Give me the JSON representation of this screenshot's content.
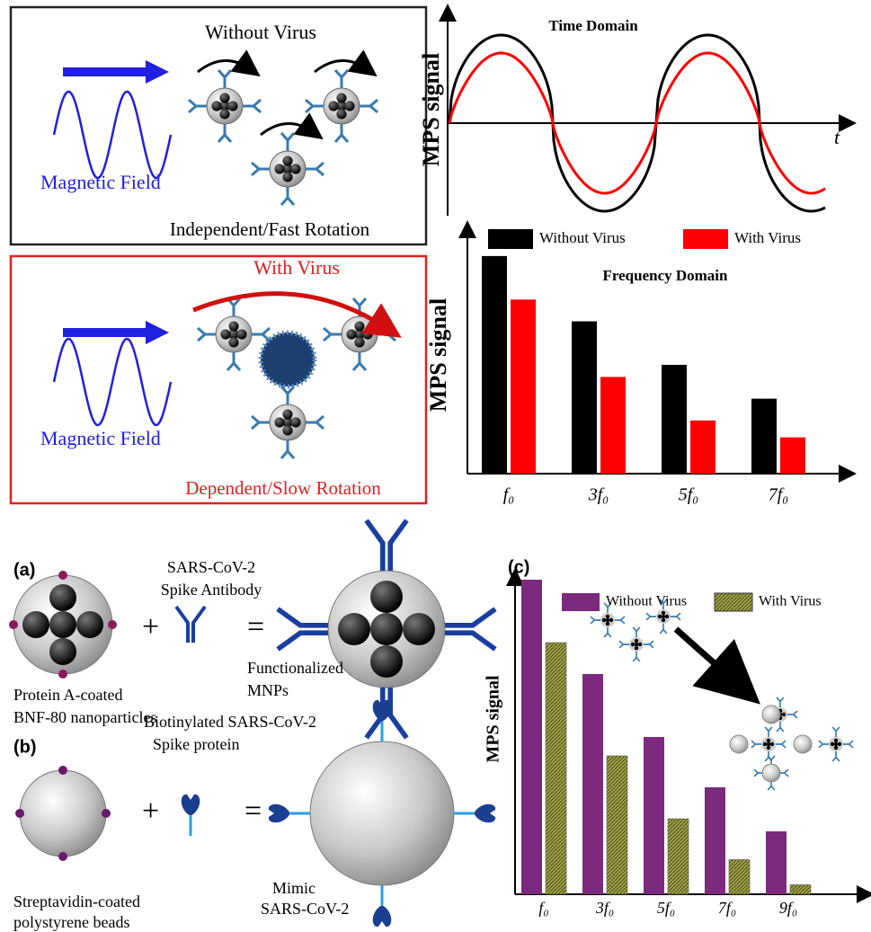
{
  "panel_top": {
    "without_virus": {
      "title": "Without Virus",
      "field": "Magnetic Field",
      "caption": "Independent/Fast Rotation"
    },
    "with_virus": {
      "title": "With Virus",
      "field": "Magnetic Field",
      "caption": "Dependent/Slow Rotation"
    },
    "time_domain": {
      "title": "Time Domain",
      "y_label": "MPS signal",
      "x_label": "t"
    }
  },
  "panel_a": {
    "label": "(a)",
    "particle": [
      "Protein A-coated",
      "BNF-80 nanoparticles"
    ],
    "antibody": [
      "SARS-CoV-2",
      "Spike Antibody"
    ],
    "result": [
      "Functionalized",
      "MNPs"
    ],
    "plus": "+",
    "equals": "="
  },
  "panel_b": {
    "label": "(b)",
    "bead": [
      "Streptavidin-coated",
      "polystyrene beads"
    ],
    "protein": [
      "Biotinylated SARS-CoV-2",
      "Spike protein"
    ],
    "result": [
      "Mimic",
      "SARS-CoV-2"
    ],
    "plus": "+",
    "equals": "="
  },
  "chart_data": [
    {
      "type": "bar",
      "title": "Frequency Domain",
      "y_label": "MPS signal",
      "categories": [
        "f₀",
        "3f₀",
        "5f₀",
        "7f₀"
      ],
      "series": [
        {
          "name": "Without Virus",
          "color": "#000000",
          "values": [
            90,
            63,
            45,
            31
          ]
        },
        {
          "name": "With Virus",
          "color": "#ff0000",
          "values": [
            72,
            40,
            22,
            15
          ]
        }
      ],
      "ylim": [
        0,
        100
      ]
    },
    {
      "type": "bar",
      "panel_label": "(c)",
      "y_label": "MPS signal",
      "categories": [
        "f₀",
        "3f₀",
        "5f₀",
        "7f₀",
        "9f₀"
      ],
      "series": [
        {
          "name": "Without Virus",
          "color": "#7b2a7e",
          "values": [
            100,
            70,
            50,
            34,
            20
          ]
        },
        {
          "name": "With Virus",
          "color": "#a3a43a",
          "hatch": true,
          "values": [
            80,
            44,
            24,
            11,
            3
          ]
        }
      ],
      "ylim": [
        0,
        100
      ]
    }
  ]
}
